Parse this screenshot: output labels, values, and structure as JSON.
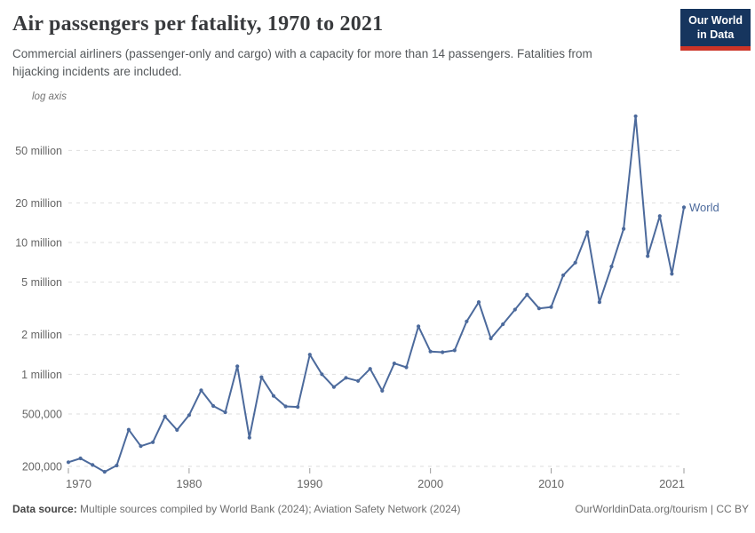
{
  "header": {
    "title": "Air passengers per fatality, 1970 to 2021",
    "subtitle_line1": "Commercial airliners (passenger-only and cargo) with a capacity for more than 14 passengers. Fatalities from",
    "subtitle_line2": "hijacking incidents are included.",
    "logo": {
      "line1": "Our World",
      "line2": "in Data",
      "bg_color": "#16355e",
      "stripe_color": "#cc3427"
    }
  },
  "chart_data": {
    "type": "line",
    "title": "Air passengers per fatality, 1970 to 2021",
    "y_scale": "log",
    "axis_note": "log axis",
    "grid": "horizontal-dashed",
    "xlim": [
      1970,
      2021
    ],
    "ylim": [
      150000,
      120000000
    ],
    "x_tick_years": [
      1970,
      1980,
      1990,
      2000,
      2010,
      2021
    ],
    "y_ticks": [
      {
        "value": 200000,
        "label": "200,000"
      },
      {
        "value": 500000,
        "label": "500,000"
      },
      {
        "value": 1000000,
        "label": "1 million"
      },
      {
        "value": 2000000,
        "label": "2 million"
      },
      {
        "value": 5000000,
        "label": "5 million"
      },
      {
        "value": 10000000,
        "label": "10 million"
      },
      {
        "value": 20000000,
        "label": "20 million"
      },
      {
        "value": 50000000,
        "label": "50 million"
      }
    ],
    "x": [
      1970,
      1971,
      1972,
      1973,
      1974,
      1975,
      1976,
      1977,
      1978,
      1979,
      1980,
      1981,
      1982,
      1983,
      1984,
      1985,
      1986,
      1987,
      1988,
      1989,
      1990,
      1991,
      1992,
      1993,
      1994,
      1995,
      1996,
      1997,
      1998,
      1999,
      2000,
      2001,
      2002,
      2003,
      2004,
      2005,
      2006,
      2007,
      2008,
      2009,
      2010,
      2011,
      2012,
      2013,
      2014,
      2015,
      2016,
      2017,
      2018,
      2019,
      2020,
      2021
    ],
    "series": [
      {
        "name": "World",
        "color": "#4c6a9c",
        "values": [
          215000,
          230000,
          205000,
          182000,
          203000,
          380000,
          285000,
          305000,
          478000,
          378000,
          490000,
          755000,
          575000,
          515000,
          1150000,
          330000,
          950000,
          685000,
          570000,
          565000,
          1410000,
          1000000,
          800000,
          940000,
          890000,
          1100000,
          750000,
          1210000,
          1130000,
          2310000,
          1490000,
          1470000,
          1520000,
          2520000,
          3530000,
          1870000,
          2400000,
          3100000,
          4020000,
          3160000,
          3240000,
          5640000,
          7030000,
          12000000,
          3530000,
          6580000,
          12700000,
          91000000,
          7890000,
          15900000,
          5780000,
          18500000
        ]
      }
    ]
  },
  "footer": {
    "source_label": "Data source:",
    "source_text": "Multiple sources compiled by World Bank (2024); Aviation Safety Network (2024)",
    "link_text": "OurWorldinData.org/tourism | CC BY"
  },
  "colors": {
    "line": "#4c6a9c",
    "gridline": "#dedede",
    "axis_text": "#666666",
    "title_text": "#383a3d",
    "subtitle_text": "#55595c"
  }
}
